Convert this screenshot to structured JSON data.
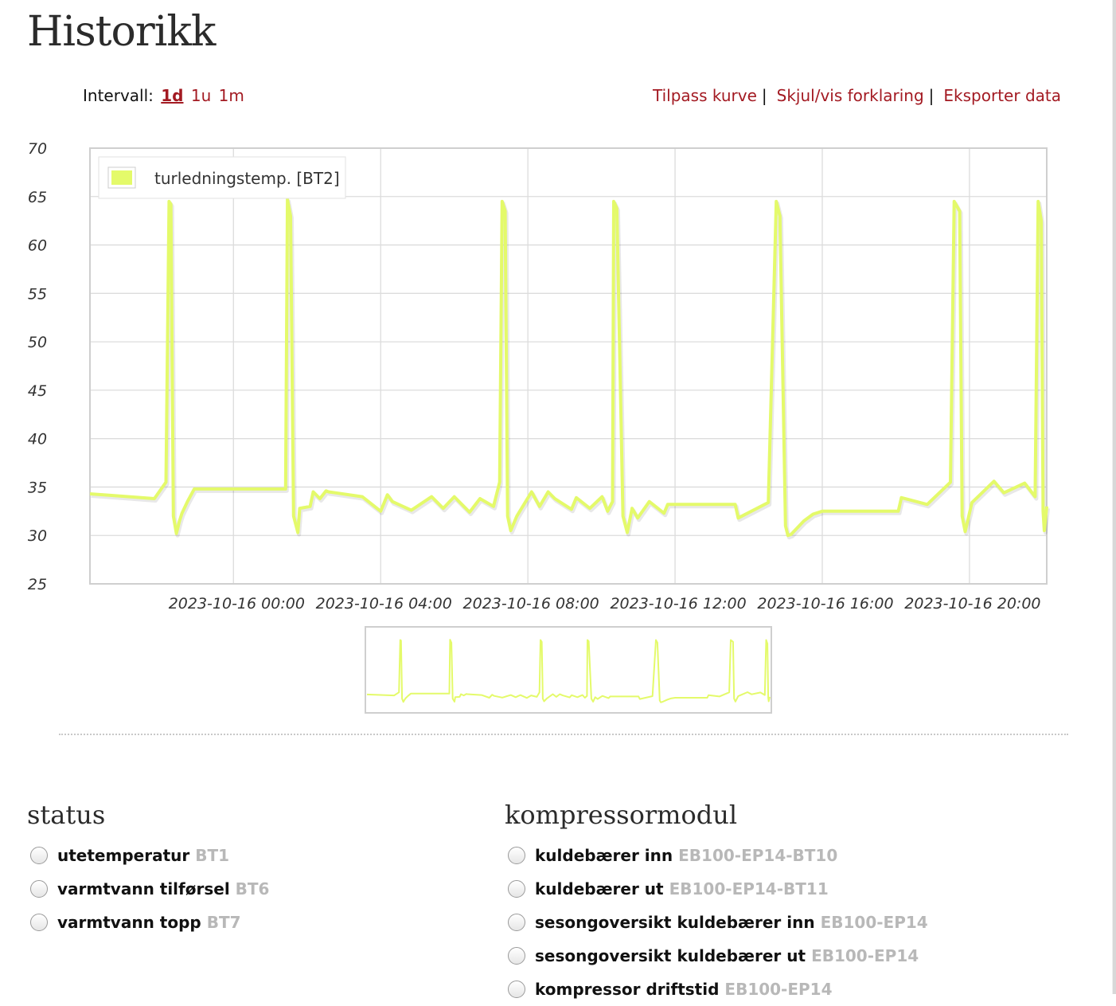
{
  "page": {
    "title": "Historikk"
  },
  "interval": {
    "label": "Intervall:",
    "options": [
      {
        "label": "1d",
        "active": true
      },
      {
        "label": "1u",
        "active": false
      },
      {
        "label": "1m",
        "active": false
      }
    ]
  },
  "actions": [
    {
      "label": "Tilpass kurve"
    },
    {
      "label": "Skjul/vis forklaring"
    },
    {
      "label": "Eksporter data"
    }
  ],
  "chart_data": {
    "type": "line",
    "title": "",
    "xlabel": "",
    "ylabel": "",
    "ylim": [
      25,
      70
    ],
    "yticks": [
      25,
      30,
      35,
      40,
      45,
      50,
      55,
      60,
      65,
      70
    ],
    "xlim": [
      "2023-10-15 20:06",
      "2023-10-16 22:06"
    ],
    "xticks": [
      "2023-10-16 00:00",
      "2023-10-16 04:00",
      "2023-10-16 08:00",
      "2023-10-16 12:00",
      "2023-10-16 16:00",
      "2023-10-16 20:00"
    ],
    "xtick_labels": [
      "2023-10-16 00:00",
      "2023-10-16 04:00",
      "2023-10-16 08:00",
      "2023-10-16 12:00",
      "2023-10-16 16:00",
      "2023-10-16 20:00"
    ],
    "grid": true,
    "legend_position": "top-left",
    "line_color": "#e4fa6a",
    "series": [
      {
        "name": "turledningstemp. [BT2]",
        "x": [
          "2023-10-15 20:06",
          "2023-10-15 21:51",
          "2023-10-15 22:10",
          "2023-10-15 22:15",
          "2023-10-15 22:18",
          "2023-10-15 22:22",
          "2023-10-15 22:27",
          "2023-10-15 22:32",
          "2023-10-15 22:36",
          "2023-10-15 22:45",
          "2023-10-15 22:56",
          "2023-10-15 23:00",
          "2023-10-15 23:43",
          "2023-10-16 00:00",
          "2023-10-16 01:25",
          "2023-10-16 01:28",
          "2023-10-16 01:33",
          "2023-10-16 01:38",
          "2023-10-16 01:45",
          "2023-10-16 01:48",
          "2023-10-16 02:05",
          "2023-10-16 02:10",
          "2023-10-16 02:21",
          "2023-10-16 02:31",
          "2023-10-16 02:35",
          "2023-10-16 02:46",
          "2023-10-16 03:30",
          "2023-10-16 04:00",
          "2023-10-16 04:11",
          "2023-10-16 04:19",
          "2023-10-16 04:50",
          "2023-10-16 05:23",
          "2023-10-16 05:42",
          "2023-10-16 06:00",
          "2023-10-16 06:25",
          "2023-10-16 06:42",
          "2023-10-16 07:04",
          "2023-10-16 07:14",
          "2023-10-16 07:18",
          "2023-10-16 07:23",
          "2023-10-16 07:27",
          "2023-10-16 07:32",
          "2023-10-16 07:42",
          "2023-10-16 08:06",
          "2023-10-16 08:19",
          "2023-10-16 08:33",
          "2023-10-16 08:44",
          "2023-10-16 09:11",
          "2023-10-16 09:19",
          "2023-10-16 09:41",
          "2023-10-16 10:01",
          "2023-10-16 10:10",
          "2023-10-16 10:18",
          "2023-10-16 10:20",
          "2023-10-16 10:25",
          "2023-10-16 10:35",
          "2023-10-16 10:42",
          "2023-10-16 10:50",
          "2023-10-16 10:59",
          "2023-10-16 11:18",
          "2023-10-16 11:42",
          "2023-10-16 11:48",
          "2023-10-16 12:00",
          "2023-10-16 13:38",
          "2023-10-16 13:43",
          "2023-10-16 14:32",
          "2023-10-16 14:45",
          "2023-10-16 14:51",
          "2023-10-16 15:00",
          "2023-10-16 15:04",
          "2023-10-16 15:09",
          "2023-10-16 15:30",
          "2023-10-16 15:45",
          "2023-10-16 16:00",
          "2023-10-16 18:04",
          "2023-10-16 18:09",
          "2023-10-16 18:51",
          "2023-10-16 19:29",
          "2023-10-16 19:35",
          "2023-10-16 19:44",
          "2023-10-16 19:48",
          "2023-10-16 19:53",
          "2023-10-16 20:04",
          "2023-10-16 20:14",
          "2023-10-16 20:40",
          "2023-10-16 20:56",
          "2023-10-16 21:30",
          "2023-10-16 21:47",
          "2023-10-16 21:52",
          "2023-10-16 21:57",
          "2023-10-16 22:00",
          "2023-10-16 22:02",
          "2023-10-16 22:06"
        ],
        "values": [
          34.3,
          33.8,
          35.5,
          64.5,
          64.2,
          32.0,
          30.2,
          31.5,
          32.3,
          33.5,
          34.8,
          34.8,
          34.8,
          34.8,
          34.8,
          64.7,
          63.0,
          32.0,
          30.3,
          32.8,
          33.0,
          34.5,
          33.8,
          34.6,
          34.5,
          34.4,
          34.0,
          32.5,
          34.2,
          33.5,
          32.6,
          34.0,
          32.8,
          34.0,
          32.4,
          33.8,
          33.0,
          35.5,
          64.5,
          63.5,
          32.0,
          30.5,
          32.0,
          34.5,
          33.0,
          34.5,
          33.8,
          32.7,
          33.9,
          32.8,
          34.0,
          32.5,
          33.5,
          64.5,
          63.8,
          32.0,
          30.3,
          32.8,
          31.8,
          33.5,
          32.3,
          33.2,
          33.2,
          33.2,
          31.8,
          33.4,
          64.5,
          63.0,
          31.0,
          30.0,
          30.1,
          31.5,
          32.2,
          32.5,
          32.5,
          33.9,
          33.2,
          35.5,
          64.5,
          63.5,
          32.0,
          30.4,
          33.4,
          34.0,
          35.6,
          34.4,
          35.4,
          34.0,
          64.5,
          62.5,
          32.5,
          30.5,
          33.0
        ]
      }
    ]
  },
  "sections": {
    "status": {
      "title": "status",
      "items": [
        {
          "label": "utetemperatur",
          "code": "BT1"
        },
        {
          "label": "varmtvann tilførsel",
          "code": "BT6"
        },
        {
          "label": "varmtvann topp",
          "code": "BT7"
        }
      ]
    },
    "kompressormodul": {
      "title": "kompressormodul",
      "items": [
        {
          "label": "kuldebærer inn",
          "code": "EB100-EP14-BT10"
        },
        {
          "label": "kuldebærer ut",
          "code": "EB100-EP14-BT11"
        },
        {
          "label": "sesongoversikt kuldebærer inn",
          "code": "EB100-EP14"
        },
        {
          "label": "sesongoversikt kuldebærer ut",
          "code": "EB100-EP14"
        },
        {
          "label": "kompressor driftstid",
          "code": "EB100-EP14"
        }
      ]
    }
  }
}
